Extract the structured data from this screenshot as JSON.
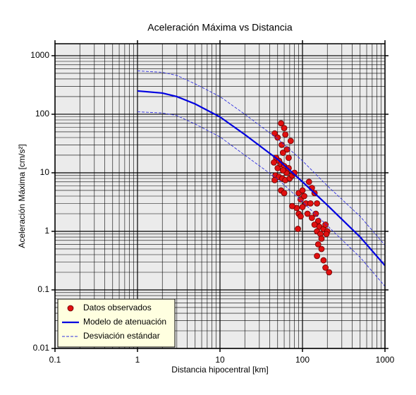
{
  "chart_data": {
    "type": "scatter-line",
    "title": "Aceleración Máxima vs Distancia",
    "xlabel": "Distancia hipocentral [km]",
    "ylabel": "Aceleración Máxima [cm/s²]",
    "xlog": true,
    "ylog": true,
    "grid": true,
    "minor_grid": true,
    "background": "#ebebeb",
    "legend_position": "lower left",
    "legend_background": "#ffffe0",
    "xlim": [
      0.1,
      1000
    ],
    "xticks": [
      0.1,
      1,
      10,
      100,
      1000
    ],
    "ylim": [
      0.01,
      1600
    ],
    "yticks": [
      0.01,
      0.1,
      1,
      10,
      100,
      1000
    ],
    "series": [
      {
        "name": "Datos observados",
        "kind": "scatter",
        "color": "#e01010",
        "x": [
          46,
          50,
          55,
          60,
          62,
          56,
          58,
          65,
          68,
          48,
          52,
          45,
          50,
          55,
          60,
          64,
          47,
          52,
          57,
          62,
          70,
          75,
          80,
          46,
          55,
          60,
          68,
          72,
          58,
          90,
          95,
          100,
          105,
          110,
          85,
          90,
          95,
          88,
          120,
          130,
          125,
          140,
          150,
          115,
          130,
          145,
          155,
          160,
          150,
          165,
          170,
          180,
          190,
          200,
          195,
          155,
          170,
          150,
          180,
          190,
          210,
          140,
          75,
          100
        ],
        "values": [
          47,
          40,
          70,
          58,
          45,
          30,
          22,
          25,
          18,
          18,
          16,
          15,
          12,
          14,
          13,
          10,
          9,
          8.5,
          8,
          7.5,
          8,
          9,
          10,
          7.5,
          5,
          4.5,
          12,
          35,
          11,
          4.5,
          3.5,
          5,
          4,
          3,
          2.5,
          2,
          1.8,
          1.1,
          7,
          5.5,
          3,
          4.5,
          3,
          2,
          1.7,
          2,
          1.5,
          1.2,
          1,
          0.9,
          0.75,
          1.1,
          1.3,
          1,
          0.9,
          0.6,
          0.5,
          0.38,
          0.32,
          0.24,
          0.2,
          1.3,
          2.7,
          2.6
        ]
      },
      {
        "name": "Modelo de atenuación",
        "kind": "line",
        "color": "#0000e0",
        "x": [
          1,
          2,
          3,
          5,
          10,
          20,
          50,
          100,
          200,
          500,
          1000
        ],
        "values": [
          250,
          230,
          200,
          150,
          90,
          45,
          17,
          7,
          2.8,
          0.8,
          0.26
        ]
      },
      {
        "name": "Desviación estándar",
        "kind": "dashed",
        "color": "#3030e0",
        "x": [
          1,
          2,
          3,
          5,
          10,
          20,
          50,
          100,
          200,
          500,
          1000
        ],
        "values": [
          550,
          520,
          460,
          330,
          200,
          100,
          38,
          16,
          6,
          1.8,
          0.58
        ]
      },
      {
        "kind": "dashed",
        "color": "#3030e0",
        "x": [
          1,
          2,
          3,
          5,
          10,
          20,
          50,
          100,
          200,
          500,
          1000
        ],
        "values": [
          110,
          105,
          95,
          68,
          41,
          20,
          7.8,
          3.2,
          1.25,
          0.36,
          0.115
        ]
      }
    ]
  }
}
